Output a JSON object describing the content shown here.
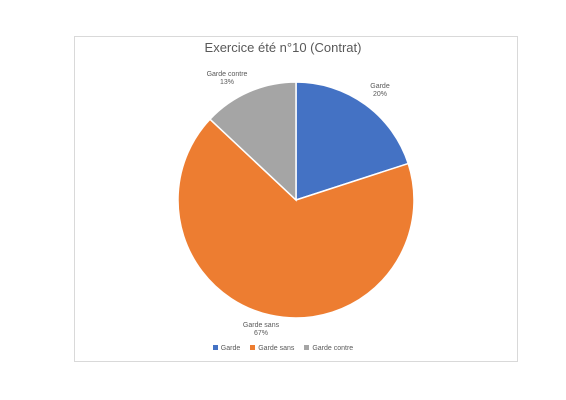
{
  "chart_data": {
    "type": "pie",
    "title": "Exercice été n°10 (Contrat)",
    "categories": [
      "Garde",
      "Garde sans",
      "Garde contre"
    ],
    "values": [
      20,
      67,
      13
    ],
    "value_labels": [
      "20%",
      "67%",
      "13%"
    ],
    "colors": [
      "#4472c4",
      "#ed7d31",
      "#a5a5a5"
    ],
    "start_angle_deg": 0,
    "direction": "clockwise",
    "legend": "bottom",
    "legend_entries": [
      "Garde",
      "Garde sans",
      "Garde contre"
    ]
  }
}
